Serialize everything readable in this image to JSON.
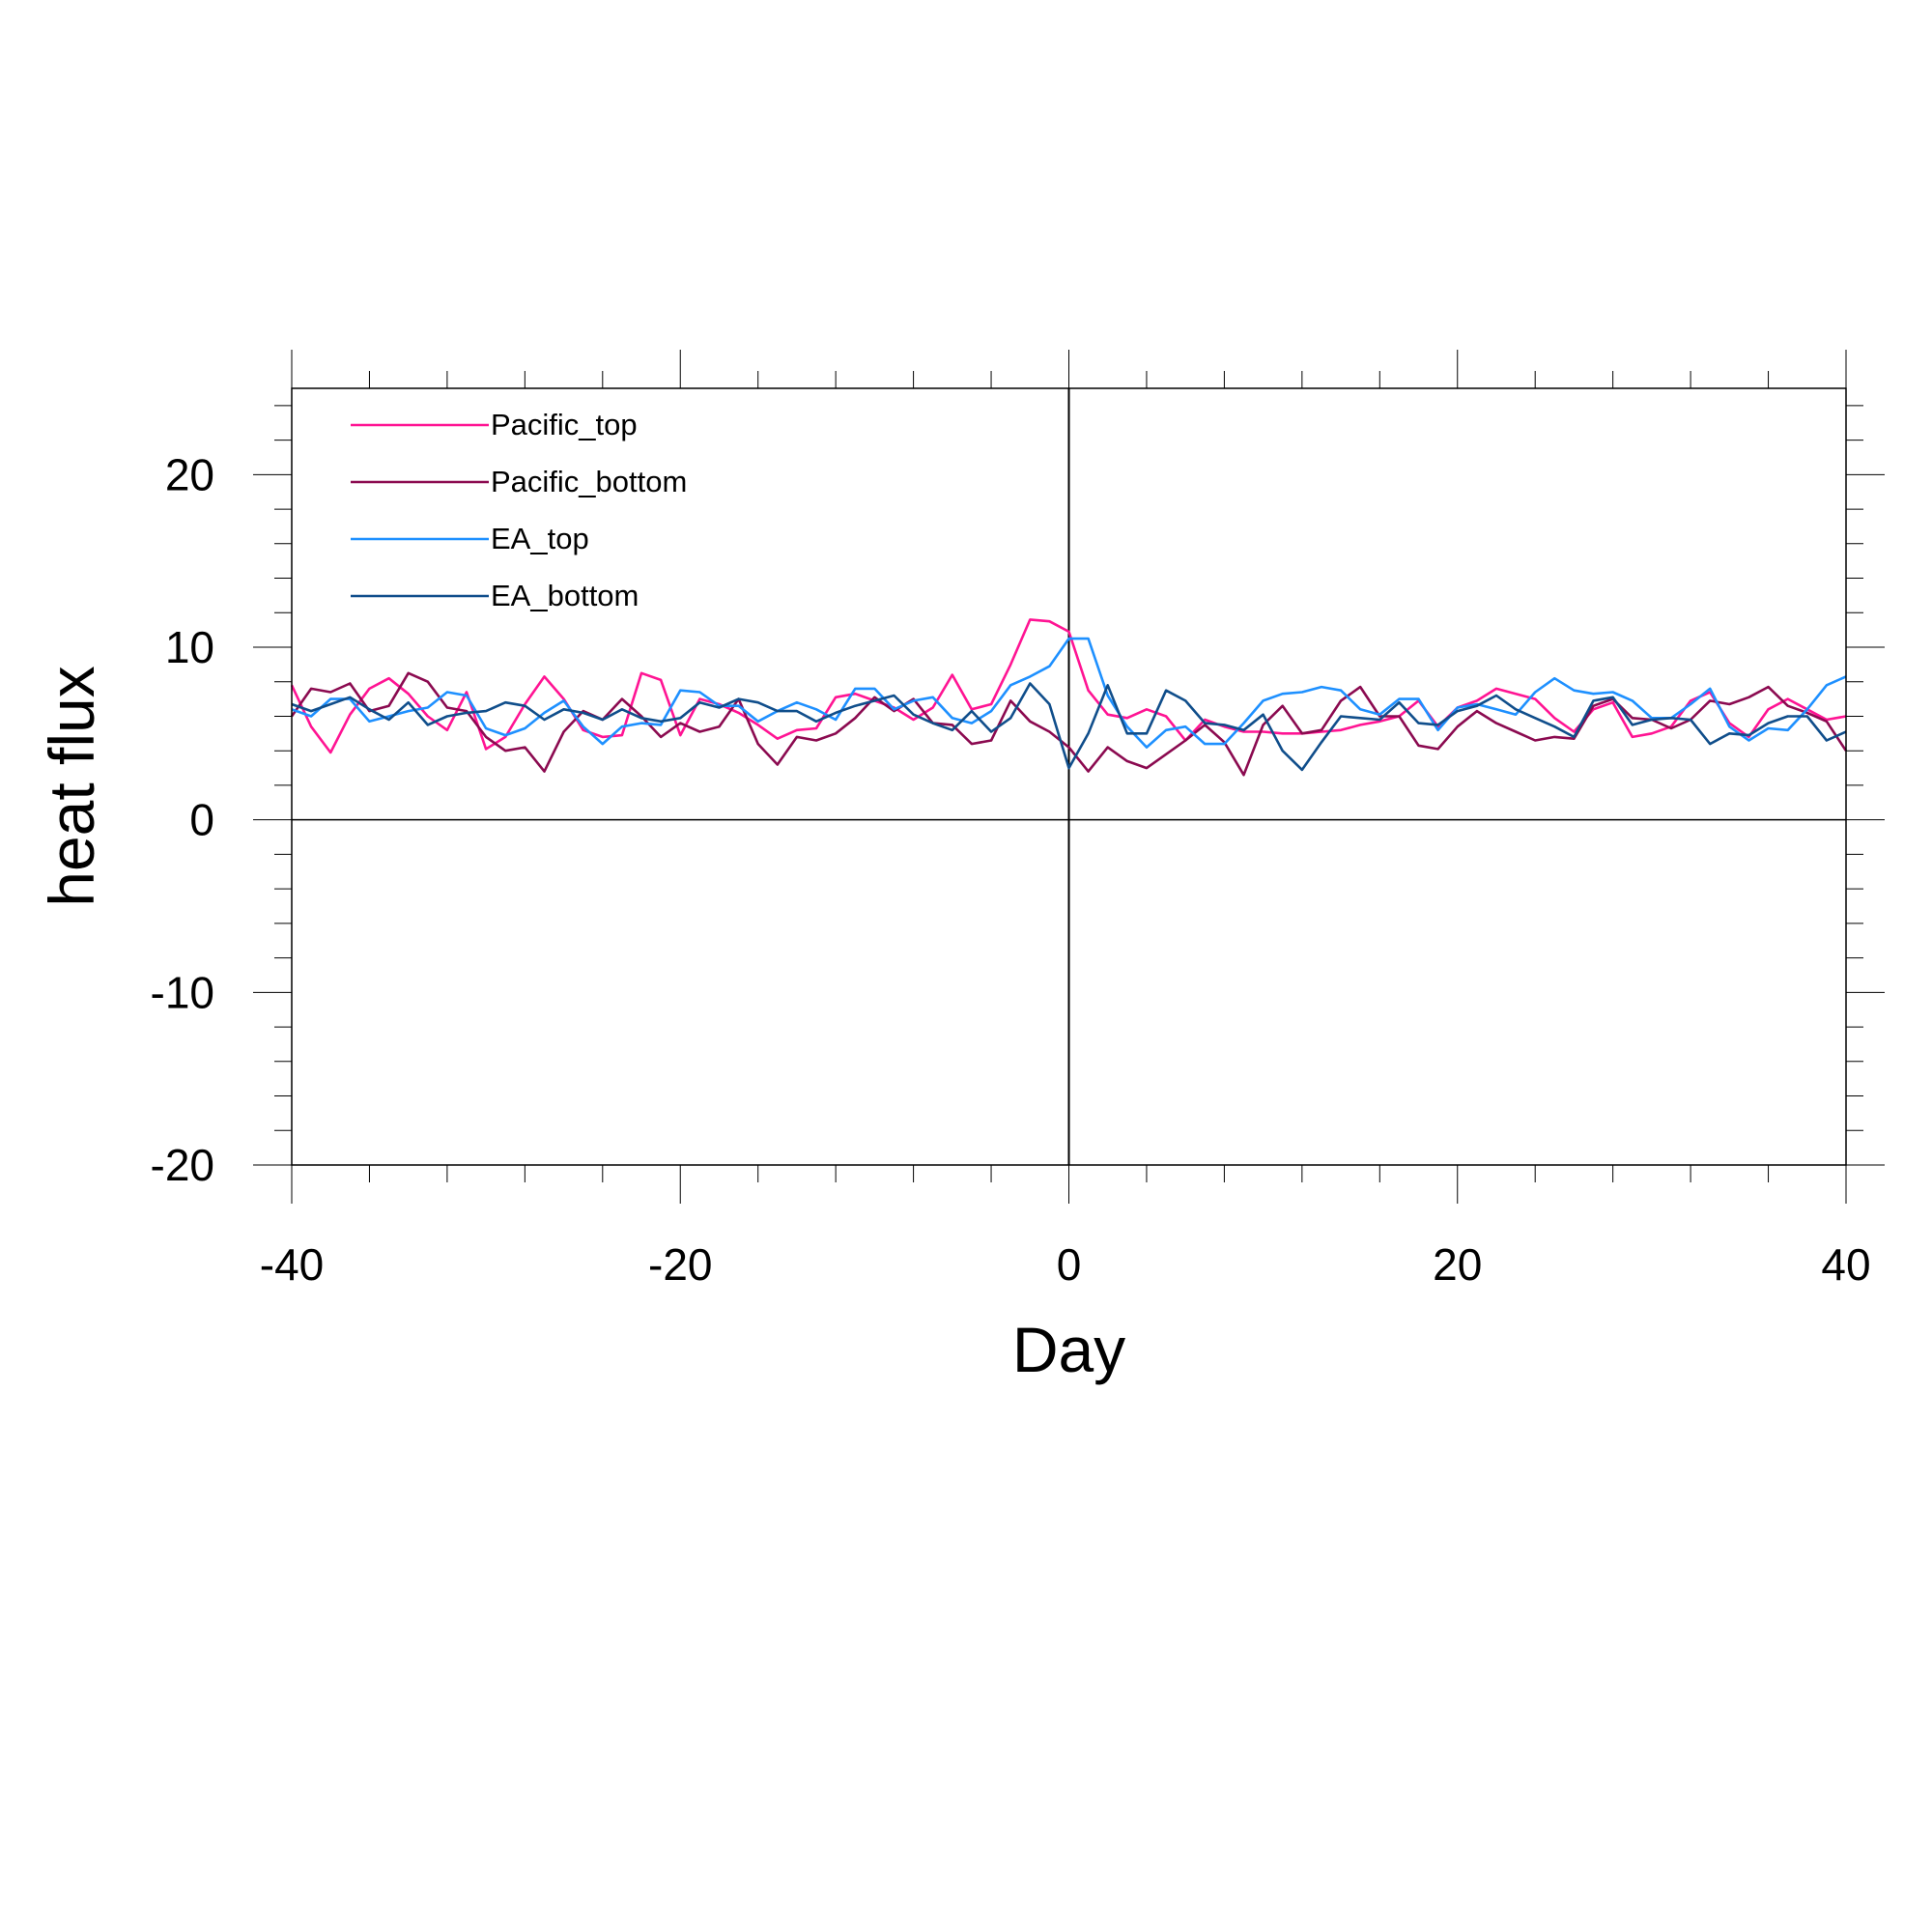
{
  "chart_data": {
    "type": "line",
    "xlabel": "Day",
    "ylabel": "heat flux",
    "xlim": [
      -40,
      40
    ],
    "ylim": [
      -20,
      25
    ],
    "xticks": [
      -40,
      -20,
      0,
      20,
      40
    ],
    "xtick_labels": [
      "-40",
      "-20",
      "0",
      "20",
      "40"
    ],
    "yticks": [
      -20,
      -10,
      0,
      10,
      20
    ],
    "ytick_labels": [
      "-20",
      "-10",
      "0",
      "10",
      "20"
    ],
    "grid": false,
    "legend_position": "top-left",
    "reference_lines": {
      "x": 0,
      "y": 0
    },
    "x": [
      -40,
      -39,
      -38,
      -37,
      -36,
      -35,
      -34,
      -33,
      -32,
      -31,
      -30,
      -29,
      -28,
      -27,
      -26,
      -25,
      -24,
      -23,
      -22,
      -21,
      -20,
      -19,
      -18,
      -17,
      -16,
      -15,
      -14,
      -13,
      -12,
      -11,
      -10,
      -9,
      -8,
      -7,
      -6,
      -5,
      -4,
      -3,
      -2,
      -1,
      0,
      1,
      2,
      3,
      4,
      5,
      6,
      7,
      8,
      9,
      10,
      11,
      12,
      13,
      14,
      15,
      16,
      17,
      18,
      19,
      20,
      21,
      22,
      23,
      24,
      25,
      26,
      27,
      28,
      29,
      30,
      31,
      32,
      33,
      34,
      35,
      36,
      37,
      38,
      39,
      40
    ],
    "series": [
      {
        "name": "Pacific_top",
        "color": "#ff1493",
        "values": [
          7.8,
          5.4,
          3.9,
          6.1,
          7.6,
          8.2,
          7.3,
          6.0,
          5.2,
          7.4,
          4.1,
          4.8,
          6.7,
          8.3,
          7.0,
          5.2,
          4.8,
          4.9,
          8.5,
          8.1,
          4.9,
          7.0,
          6.7,
          6.2,
          5.5,
          4.7,
          5.2,
          5.3,
          7.1,
          7.3,
          6.9,
          6.5,
          5.8,
          6.5,
          8.4,
          6.4,
          6.7,
          9.0,
          11.6,
          11.5,
          10.9,
          7.5,
          6.1,
          5.9,
          6.4,
          6.0,
          4.6,
          5.8,
          5.4,
          5.1,
          5.1,
          5.0,
          5.0,
          5.1,
          5.2,
          5.5,
          5.7,
          6.0,
          6.9,
          5.4,
          6.5,
          6.9,
          7.6,
          7.3,
          7.0,
          5.9,
          5.1,
          6.4,
          6.8,
          4.8,
          5.0,
          5.4,
          6.9,
          7.4,
          5.6,
          4.8,
          6.4,
          7.0,
          6.4,
          5.8,
          6.0
        ]
      },
      {
        "name": "Pacific_bottom",
        "color": "#8b0a50",
        "values": [
          6.0,
          7.6,
          7.4,
          7.9,
          6.3,
          6.6,
          8.5,
          8.0,
          6.5,
          6.3,
          4.8,
          4.0,
          4.2,
          2.8,
          5.1,
          6.3,
          5.8,
          7.0,
          6.0,
          4.8,
          5.6,
          5.1,
          5.4,
          7.0,
          4.4,
          3.2,
          4.8,
          4.6,
          5.0,
          5.9,
          7.1,
          6.3,
          7.0,
          5.6,
          5.5,
          4.4,
          4.6,
          6.9,
          5.7,
          5.1,
          4.2,
          2.8,
          4.2,
          3.4,
          3.0,
          3.8,
          4.6,
          5.5,
          4.5,
          2.6,
          5.5,
          6.6,
          5.0,
          5.2,
          6.9,
          7.7,
          6.0,
          6.0,
          4.3,
          4.1,
          5.4,
          6.3,
          5.6,
          5.1,
          4.6,
          4.8,
          4.7,
          6.6,
          7.0,
          5.9,
          5.8,
          5.3,
          5.8,
          6.9,
          6.7,
          7.1,
          7.7,
          6.6,
          6.2,
          5.7,
          4.0
        ]
      },
      {
        "name": "EA_top",
        "color": "#1e90ff",
        "values": [
          6.4,
          6.0,
          7.0,
          7.0,
          5.7,
          6.0,
          6.3,
          6.5,
          7.4,
          7.2,
          5.3,
          4.9,
          5.3,
          6.2,
          6.9,
          5.4,
          4.4,
          5.4,
          5.6,
          5.5,
          7.5,
          7.4,
          6.6,
          6.6,
          5.7,
          6.3,
          6.8,
          6.4,
          5.8,
          7.6,
          7.6,
          6.4,
          6.9,
          7.1,
          5.9,
          5.6,
          6.3,
          7.8,
          8.3,
          8.9,
          10.5,
          10.5,
          7.2,
          5.4,
          4.2,
          5.2,
          5.4,
          4.4,
          4.4,
          5.6,
          6.9,
          7.3,
          7.4,
          7.7,
          7.5,
          6.4,
          6.1,
          7.0,
          7.0,
          5.2,
          6.5,
          6.7,
          6.4,
          6.1,
          7.4,
          8.2,
          7.5,
          7.3,
          7.4,
          6.9,
          5.9,
          5.9,
          6.7,
          7.6,
          5.4,
          4.6,
          5.3,
          5.2,
          6.4,
          7.8,
          8.3
        ]
      },
      {
        "name": "EA_bottom",
        "color": "#104e8b",
        "values": [
          6.7,
          6.3,
          6.7,
          7.1,
          6.4,
          5.8,
          6.8,
          5.5,
          6.0,
          6.2,
          6.3,
          6.8,
          6.6,
          5.8,
          6.4,
          6.2,
          5.8,
          6.4,
          5.9,
          5.7,
          5.9,
          6.8,
          6.5,
          7.0,
          6.8,
          6.3,
          6.3,
          5.7,
          6.2,
          6.6,
          6.9,
          7.2,
          6.1,
          5.6,
          5.2,
          6.3,
          5.1,
          5.9,
          7.9,
          6.7,
          3.0,
          5.0,
          7.8,
          5.0,
          5.0,
          7.5,
          6.9,
          5.6,
          5.5,
          5.2,
          6.1,
          4.0,
          2.9,
          4.5,
          6.0,
          5.9,
          5.8,
          6.8,
          5.6,
          5.5,
          6.3,
          6.6,
          7.2,
          6.4,
          5.9,
          5.4,
          4.8,
          6.9,
          7.1,
          5.5,
          5.8,
          5.9,
          5.8,
          4.4,
          5.0,
          4.9,
          5.6,
          6.0,
          6.0,
          4.6,
          5.1
        ]
      }
    ]
  }
}
